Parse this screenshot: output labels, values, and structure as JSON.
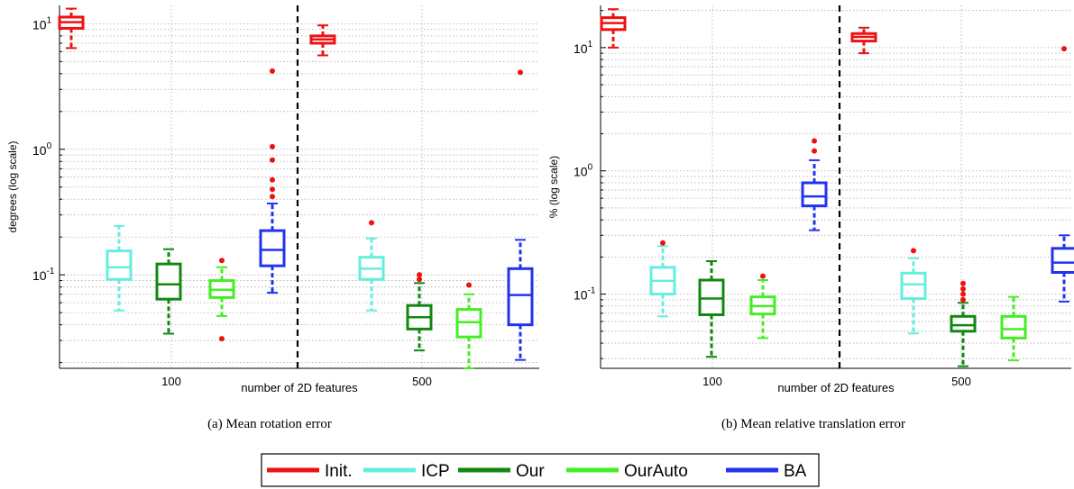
{
  "legend": [
    {
      "key": "init",
      "label": "Init.",
      "color": "#ee1111"
    },
    {
      "key": "icp",
      "label": "ICP",
      "color": "#66eedd"
    },
    {
      "key": "our",
      "label": "Our",
      "color": "#118811"
    },
    {
      "key": "ourauto",
      "label": "OurAuto",
      "color": "#44ee22"
    },
    {
      "key": "ba",
      "label": "BA",
      "color": "#2233ee"
    }
  ],
  "chart_data": [
    {
      "type": "box",
      "caption": "(a)  Mean rotation error",
      "ylabel": "degrees (log scale)",
      "xlabel": "number of 2D features",
      "yscale": "log",
      "ylim": [
        0.018,
        14
      ],
      "ytick_labels": [
        {
          "value": 10,
          "base": "10",
          "exp": "1"
        },
        {
          "value": 1,
          "base": "10",
          "exp": "0"
        },
        {
          "value": 0.1,
          "base": "10",
          "exp": "-1"
        }
      ],
      "groups": [
        "100",
        "500"
      ],
      "grid": true,
      "series": [
        {
          "name": "Init.",
          "group": "100",
          "whisker_low": 6.4,
          "q1": 9.2,
          "median": 10.3,
          "q3": 11.3,
          "whisker_high": 13.2,
          "outliers": []
        },
        {
          "name": "ICP",
          "group": "100",
          "whisker_low": 0.052,
          "q1": 0.092,
          "median": 0.115,
          "q3": 0.155,
          "whisker_high": 0.245,
          "outliers": []
        },
        {
          "name": "Our",
          "group": "100",
          "whisker_low": 0.034,
          "q1": 0.064,
          "median": 0.084,
          "q3": 0.122,
          "whisker_high": 0.16,
          "outliers": []
        },
        {
          "name": "OurAuto",
          "group": "100",
          "whisker_low": 0.047,
          "q1": 0.066,
          "median": 0.076,
          "q3": 0.09,
          "whisker_high": 0.115,
          "outliers": [
            0.13,
            0.031
          ]
        },
        {
          "name": "BA",
          "group": "100",
          "whisker_low": 0.072,
          "q1": 0.118,
          "median": 0.158,
          "q3": 0.225,
          "whisker_high": 0.37,
          "outliers": [
            0.42,
            0.48,
            0.57,
            0.82,
            1.05,
            4.2
          ]
        },
        {
          "name": "Init.",
          "group": "500",
          "whisker_low": 5.6,
          "q1": 7.0,
          "median": 7.5,
          "q3": 8.0,
          "whisker_high": 9.7,
          "outliers": []
        },
        {
          "name": "ICP",
          "group": "500",
          "whisker_low": 0.052,
          "q1": 0.092,
          "median": 0.112,
          "q3": 0.138,
          "whisker_high": 0.195,
          "outliers": [
            0.26
          ]
        },
        {
          "name": "Our",
          "group": "500",
          "whisker_low": 0.025,
          "q1": 0.037,
          "median": 0.046,
          "q3": 0.057,
          "whisker_high": 0.086,
          "outliers": [
            0.092,
            0.1
          ]
        },
        {
          "name": "OurAuto",
          "group": "500",
          "whisker_low": 0.018,
          "q1": 0.032,
          "median": 0.042,
          "q3": 0.053,
          "whisker_high": 0.07,
          "outliers": [
            0.083
          ]
        },
        {
          "name": "BA",
          "group": "500",
          "whisker_low": 0.021,
          "q1": 0.04,
          "median": 0.069,
          "q3": 0.112,
          "whisker_high": 0.19,
          "outliers": [
            4.1
          ]
        }
      ]
    },
    {
      "type": "box",
      "caption": "(b)  Mean relative translation error",
      "ylabel": "% (log scale)",
      "xlabel": "number of 2D features",
      "yscale": "log",
      "ylim": [
        0.025,
        22
      ],
      "ytick_labels": [
        {
          "value": 10,
          "base": "10",
          "exp": "1"
        },
        {
          "value": 1,
          "base": "10",
          "exp": "0"
        },
        {
          "value": 0.1,
          "base": "10",
          "exp": "-1"
        }
      ],
      "groups": [
        "100",
        "500"
      ],
      "grid": true,
      "series": [
        {
          "name": "Init.",
          "group": "100",
          "whisker_low": 10.0,
          "q1": 14.0,
          "median": 15.8,
          "q3": 17.5,
          "whisker_high": 20.5,
          "outliers": []
        },
        {
          "name": "ICP",
          "group": "100",
          "whisker_low": 0.066,
          "q1": 0.1,
          "median": 0.128,
          "q3": 0.165,
          "whisker_high": 0.245,
          "outliers": [
            0.26
          ]
        },
        {
          "name": "Our",
          "group": "100",
          "whisker_low": 0.031,
          "q1": 0.068,
          "median": 0.092,
          "q3": 0.13,
          "whisker_high": 0.185,
          "outliers": []
        },
        {
          "name": "OurAuto",
          "group": "100",
          "whisker_low": 0.044,
          "q1": 0.069,
          "median": 0.08,
          "q3": 0.095,
          "whisker_high": 0.13,
          "outliers": [
            0.14
          ]
        },
        {
          "name": "BA",
          "group": "100",
          "whisker_low": 0.33,
          "q1": 0.52,
          "median": 0.62,
          "q3": 0.8,
          "whisker_high": 1.22,
          "outliers": [
            1.45,
            1.75
          ]
        },
        {
          "name": "Init.",
          "group": "500",
          "whisker_low": 9.0,
          "q1": 11.3,
          "median": 12.2,
          "q3": 13.0,
          "whisker_high": 14.5,
          "outliers": []
        },
        {
          "name": "ICP",
          "group": "500",
          "whisker_low": 0.048,
          "q1": 0.092,
          "median": 0.12,
          "q3": 0.148,
          "whisker_high": 0.195,
          "outliers": [
            0.225
          ]
        },
        {
          "name": "Our",
          "group": "500",
          "whisker_low": 0.026,
          "q1": 0.05,
          "median": 0.056,
          "q3": 0.066,
          "whisker_high": 0.085,
          "outliers": [
            0.09,
            0.1,
            0.11,
            0.122
          ]
        },
        {
          "name": "OurAuto",
          "group": "500",
          "whisker_low": 0.029,
          "q1": 0.044,
          "median": 0.052,
          "q3": 0.066,
          "whisker_high": 0.095,
          "outliers": []
        },
        {
          "name": "BA",
          "group": "500",
          "whisker_low": 0.087,
          "q1": 0.15,
          "median": 0.18,
          "q3": 0.235,
          "whisker_high": 0.3,
          "outliers": [
            9.8
          ]
        }
      ]
    }
  ]
}
